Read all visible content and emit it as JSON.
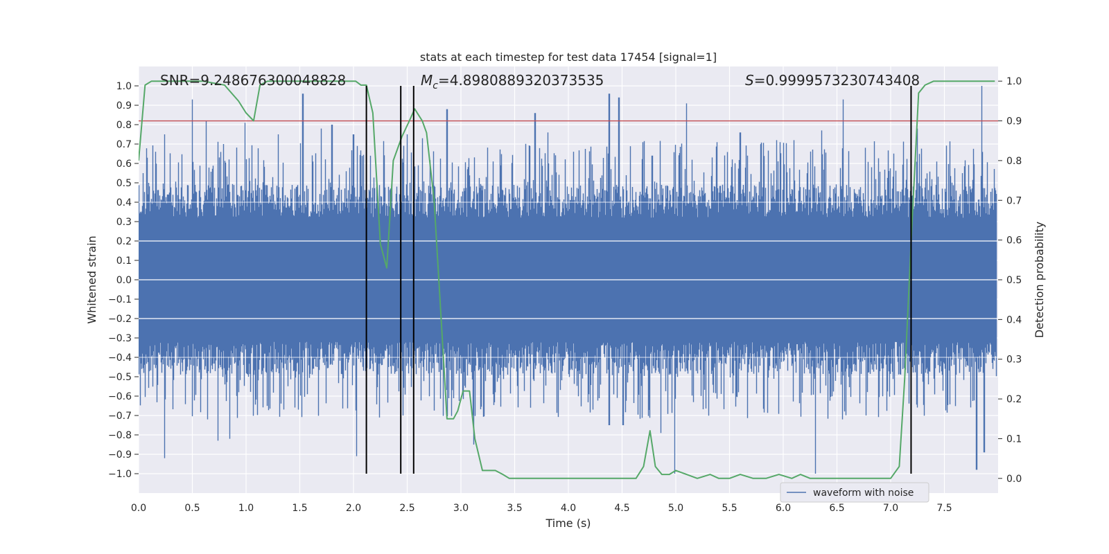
{
  "chart_data": {
    "type": "line",
    "title": "stats at each timestep for test data 17454 [signal=1]",
    "xlabel": "Time (s)",
    "ylabel": "Whitened strain",
    "y2label": "Detection probability",
    "xlim": [
      0,
      8
    ],
    "ylim": [
      -1.1,
      1.1
    ],
    "y2lim": [
      -0.0369,
      1.0369
    ],
    "xticks": [
      "0.0",
      "0.5",
      "1.0",
      "1.5",
      "2.0",
      "2.5",
      "3.0",
      "3.5",
      "4.0",
      "4.5",
      "5.0",
      "5.5",
      "6.0",
      "6.5",
      "7.0",
      "7.5"
    ],
    "yticks": [
      "1.0",
      "0.9",
      "0.8",
      "0.7",
      "0.6",
      "0.5",
      "0.4",
      "0.3",
      "0.2",
      "0.1",
      "0.0",
      "−0.1",
      "−0.2",
      "−0.3",
      "−0.4",
      "−0.5",
      "−0.6",
      "−0.7",
      "−0.8",
      "−0.9",
      "−1.0"
    ],
    "y2ticks": [
      "1.0",
      "0.9",
      "0.8",
      "0.7",
      "0.6",
      "0.5",
      "0.4",
      "0.3",
      "0.2",
      "0.1",
      "0.0"
    ],
    "grid": true,
    "legend": {
      "location": "lower center",
      "entries": [
        "waveform with noise"
      ]
    },
    "annotations": {
      "snr": "SNR=9.248676300048828",
      "mc_symbol": "M",
      "mc_sub": "c",
      "mc_value": "=4.8980889320373535",
      "s_symbol": "S",
      "s_value": "=0.9999573230743408"
    },
    "threshold": 0.9,
    "vlines": [
      2.12,
      2.44,
      2.56,
      7.19
    ],
    "series": [
      {
        "name": "waveform with noise",
        "color": "#4c72b0",
        "axis": "left",
        "envelope_note": "dense noisy strain, core ~±0.4 with spikes to ±1.0",
        "peaks_up": [
          [
            0.04,
            0.55
          ],
          [
            0.24,
            0.75
          ],
          [
            0.5,
            0.93
          ],
          [
            0.63,
            0.82
          ],
          [
            0.79,
            0.7
          ],
          [
            0.99,
            0.81
          ],
          [
            1.3,
            0.75
          ],
          [
            1.53,
            0.96
          ],
          [
            1.7,
            0.78
          ],
          [
            1.8,
            0.8
          ],
          [
            2.0,
            0.75
          ],
          [
            2.5,
            0.75
          ],
          [
            2.64,
            0.73
          ],
          [
            2.87,
            0.88
          ],
          [
            3.06,
            0.57
          ],
          [
            3.37,
            0.59
          ],
          [
            3.69,
            0.86
          ],
          [
            3.81,
            0.76
          ],
          [
            4.38,
            0.96
          ],
          [
            4.47,
            0.94
          ],
          [
            4.78,
            0.64
          ],
          [
            5.1,
            0.91
          ],
          [
            5.6,
            0.76
          ],
          [
            5.94,
            0.72
          ],
          [
            6.1,
            0.72
          ],
          [
            6.36,
            0.77
          ],
          [
            6.56,
            0.93
          ],
          [
            7.25,
            0.78
          ],
          [
            7.85,
            1.0
          ]
        ],
        "peaks_down": [
          [
            0.24,
            -0.92
          ],
          [
            0.64,
            -0.72
          ],
          [
            0.74,
            -0.83
          ],
          [
            0.85,
            -0.82
          ],
          [
            1.57,
            -0.59
          ],
          [
            2.03,
            -0.91
          ],
          [
            2.12,
            -0.84
          ],
          [
            3.12,
            -0.85
          ],
          [
            4.38,
            -0.75
          ],
          [
            4.51,
            -0.75
          ],
          [
            4.86,
            -0.79
          ],
          [
            4.99,
            -1.0
          ],
          [
            6.3,
            -1.0
          ],
          [
            6.55,
            -0.72
          ],
          [
            7.8,
            -0.98
          ],
          [
            7.87,
            -0.89
          ]
        ]
      },
      {
        "name": "",
        "color": "#55a868",
        "axis": "right",
        "x": [
          0.0,
          0.06,
          0.12,
          0.2,
          0.4,
          0.6,
          0.8,
          0.93,
          1.0,
          1.07,
          1.13,
          1.2,
          1.4,
          1.6,
          1.8,
          1.95,
          2.02,
          2.07,
          2.12,
          2.18,
          2.25,
          2.31,
          2.37,
          2.45,
          2.52,
          2.57,
          2.64,
          2.68,
          2.75,
          2.81,
          2.87,
          2.93,
          2.97,
          3.02,
          3.08,
          3.13,
          3.2,
          3.26,
          3.32,
          3.39,
          3.45,
          3.55,
          3.7,
          3.9,
          4.1,
          4.3,
          4.5,
          4.63,
          4.7,
          4.76,
          4.81,
          4.87,
          4.94,
          5.0,
          5.1,
          5.2,
          5.32,
          5.4,
          5.5,
          5.6,
          5.72,
          5.84,
          5.96,
          6.08,
          6.16,
          6.25,
          6.35,
          6.5,
          6.7,
          6.9,
          7.0,
          7.08,
          7.13,
          7.2,
          7.26,
          7.32,
          7.4,
          7.6,
          7.8,
          7.97
        ],
        "y": [
          0.8,
          0.99,
          1.0,
          1.0,
          1.0,
          1.0,
          0.99,
          0.95,
          0.92,
          0.9,
          0.99,
          1.0,
          1.0,
          1.0,
          1.0,
          1.0,
          1.0,
          0.99,
          0.99,
          0.92,
          0.59,
          0.53,
          0.8,
          0.86,
          0.9,
          0.93,
          0.9,
          0.87,
          0.7,
          0.43,
          0.15,
          0.15,
          0.17,
          0.22,
          0.22,
          0.1,
          0.02,
          0.02,
          0.02,
          0.01,
          0.0,
          0.0,
          0.0,
          0.0,
          0.0,
          0.0,
          0.0,
          0.0,
          0.03,
          0.12,
          0.03,
          0.01,
          0.01,
          0.02,
          0.01,
          0.0,
          0.01,
          0.0,
          0.0,
          0.01,
          0.0,
          0.0,
          0.01,
          0.0,
          0.01,
          0.0,
          0.0,
          0.0,
          0.0,
          0.0,
          0.0,
          0.03,
          0.25,
          0.65,
          0.97,
          0.99,
          1.0,
          1.0,
          1.0,
          1.0
        ]
      }
    ]
  }
}
